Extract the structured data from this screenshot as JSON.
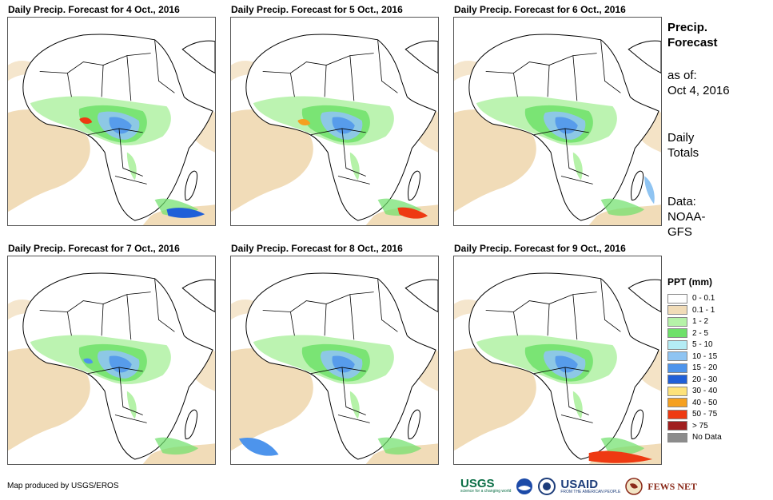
{
  "panels": [
    {
      "title": "Daily Precip. Forecast for 4 Oct., 2016"
    },
    {
      "title": "Daily Precip. Forecast for 5 Oct., 2016"
    },
    {
      "title": "Daily Precip. Forecast for 6 Oct., 2016"
    },
    {
      "title": "Daily Precip. Forecast for 7 Oct., 2016"
    },
    {
      "title": "Daily Precip. Forecast for 8 Oct., 2016"
    },
    {
      "title": "Daily Precip. Forecast for 9 Oct., 2016"
    }
  ],
  "sidebar": {
    "title_line1": "Precip.",
    "title_line2": "Forecast",
    "asof_line1": "as of:",
    "asof_line2": "Oct 4, 2016",
    "totals_line1": "Daily",
    "totals_line2": "Totals",
    "data_line1": "Data:",
    "data_line2": "NOAA-",
    "data_line3": "GFS"
  },
  "legend": {
    "title": "PPT (mm)",
    "items": [
      {
        "label": "0 - 0.1",
        "color": "#ffffff"
      },
      {
        "label": "0.1 - 1",
        "color": "#f1dcb8"
      },
      {
        "label": "1 - 2",
        "color": "#b5f2a8"
      },
      {
        "label": "2 - 5",
        "color": "#6ee06a"
      },
      {
        "label": "5 - 10",
        "color": "#b4ecf5"
      },
      {
        "label": "10 - 15",
        "color": "#8fc4f2"
      },
      {
        "label": "15 - 20",
        "color": "#4d94ec"
      },
      {
        "label": "20 - 30",
        "color": "#1f5fd8"
      },
      {
        "label": "30 - 40",
        "color": "#fde27a"
      },
      {
        "label": "40 - 50",
        "color": "#f5a020"
      },
      {
        "label": "50 - 75",
        "color": "#ee3a12"
      },
      {
        "label": "> 75",
        "color": "#a01f1f"
      },
      {
        "label": "No Data",
        "color": "#8c8c8c"
      }
    ]
  },
  "footer": {
    "credit": "Map produced by USGS/EROS",
    "logo_usgs": "USGS",
    "logo_usgs_tag": "science for a changing world",
    "logo_usaid": "USAID",
    "logo_usaid_tag": "FROM THE AMERICAN PEOPLE",
    "logo_fews": "FEWS NET"
  }
}
